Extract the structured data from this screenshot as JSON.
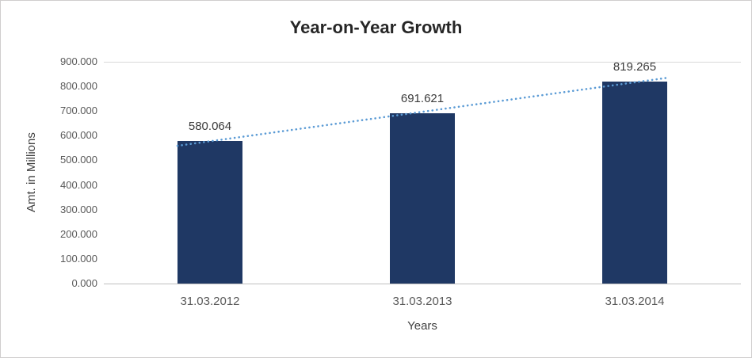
{
  "chart_data": {
    "type": "bar",
    "title": "Year-on-Year Growth",
    "xlabel": "Years",
    "ylabel": "Amt. in Millions",
    "categories": [
      "31.03.2012",
      "31.03.2013",
      "31.03.2014"
    ],
    "values": [
      580.064,
      691.621,
      819.265
    ],
    "value_labels": [
      "580.064",
      "691.621",
      "819.265"
    ],
    "ylim": [
      0,
      900
    ],
    "ytick_step": 100,
    "ytick_labels": [
      "0.000",
      "100.000",
      "200.000",
      "300.000",
      "400.000",
      "500.000",
      "600.000",
      "700.000",
      "800.000",
      "900.000"
    ],
    "bar_color": "#1F3864",
    "trendline": {
      "type": "linear",
      "style": "round-dotted",
      "color": "#5B9BD5"
    },
    "legend": "none",
    "grid": "top line and baseline only"
  },
  "colors": {
    "background": "#FFFFFF",
    "frame_border": "#D0CECE",
    "top_gridline": "#D9D9D9",
    "axis_line": "#BFBFBF",
    "title_text": "#262626",
    "axis_title_text": "#404040",
    "tick_text": "#595959",
    "data_label_text": "#3B3B3B"
  }
}
